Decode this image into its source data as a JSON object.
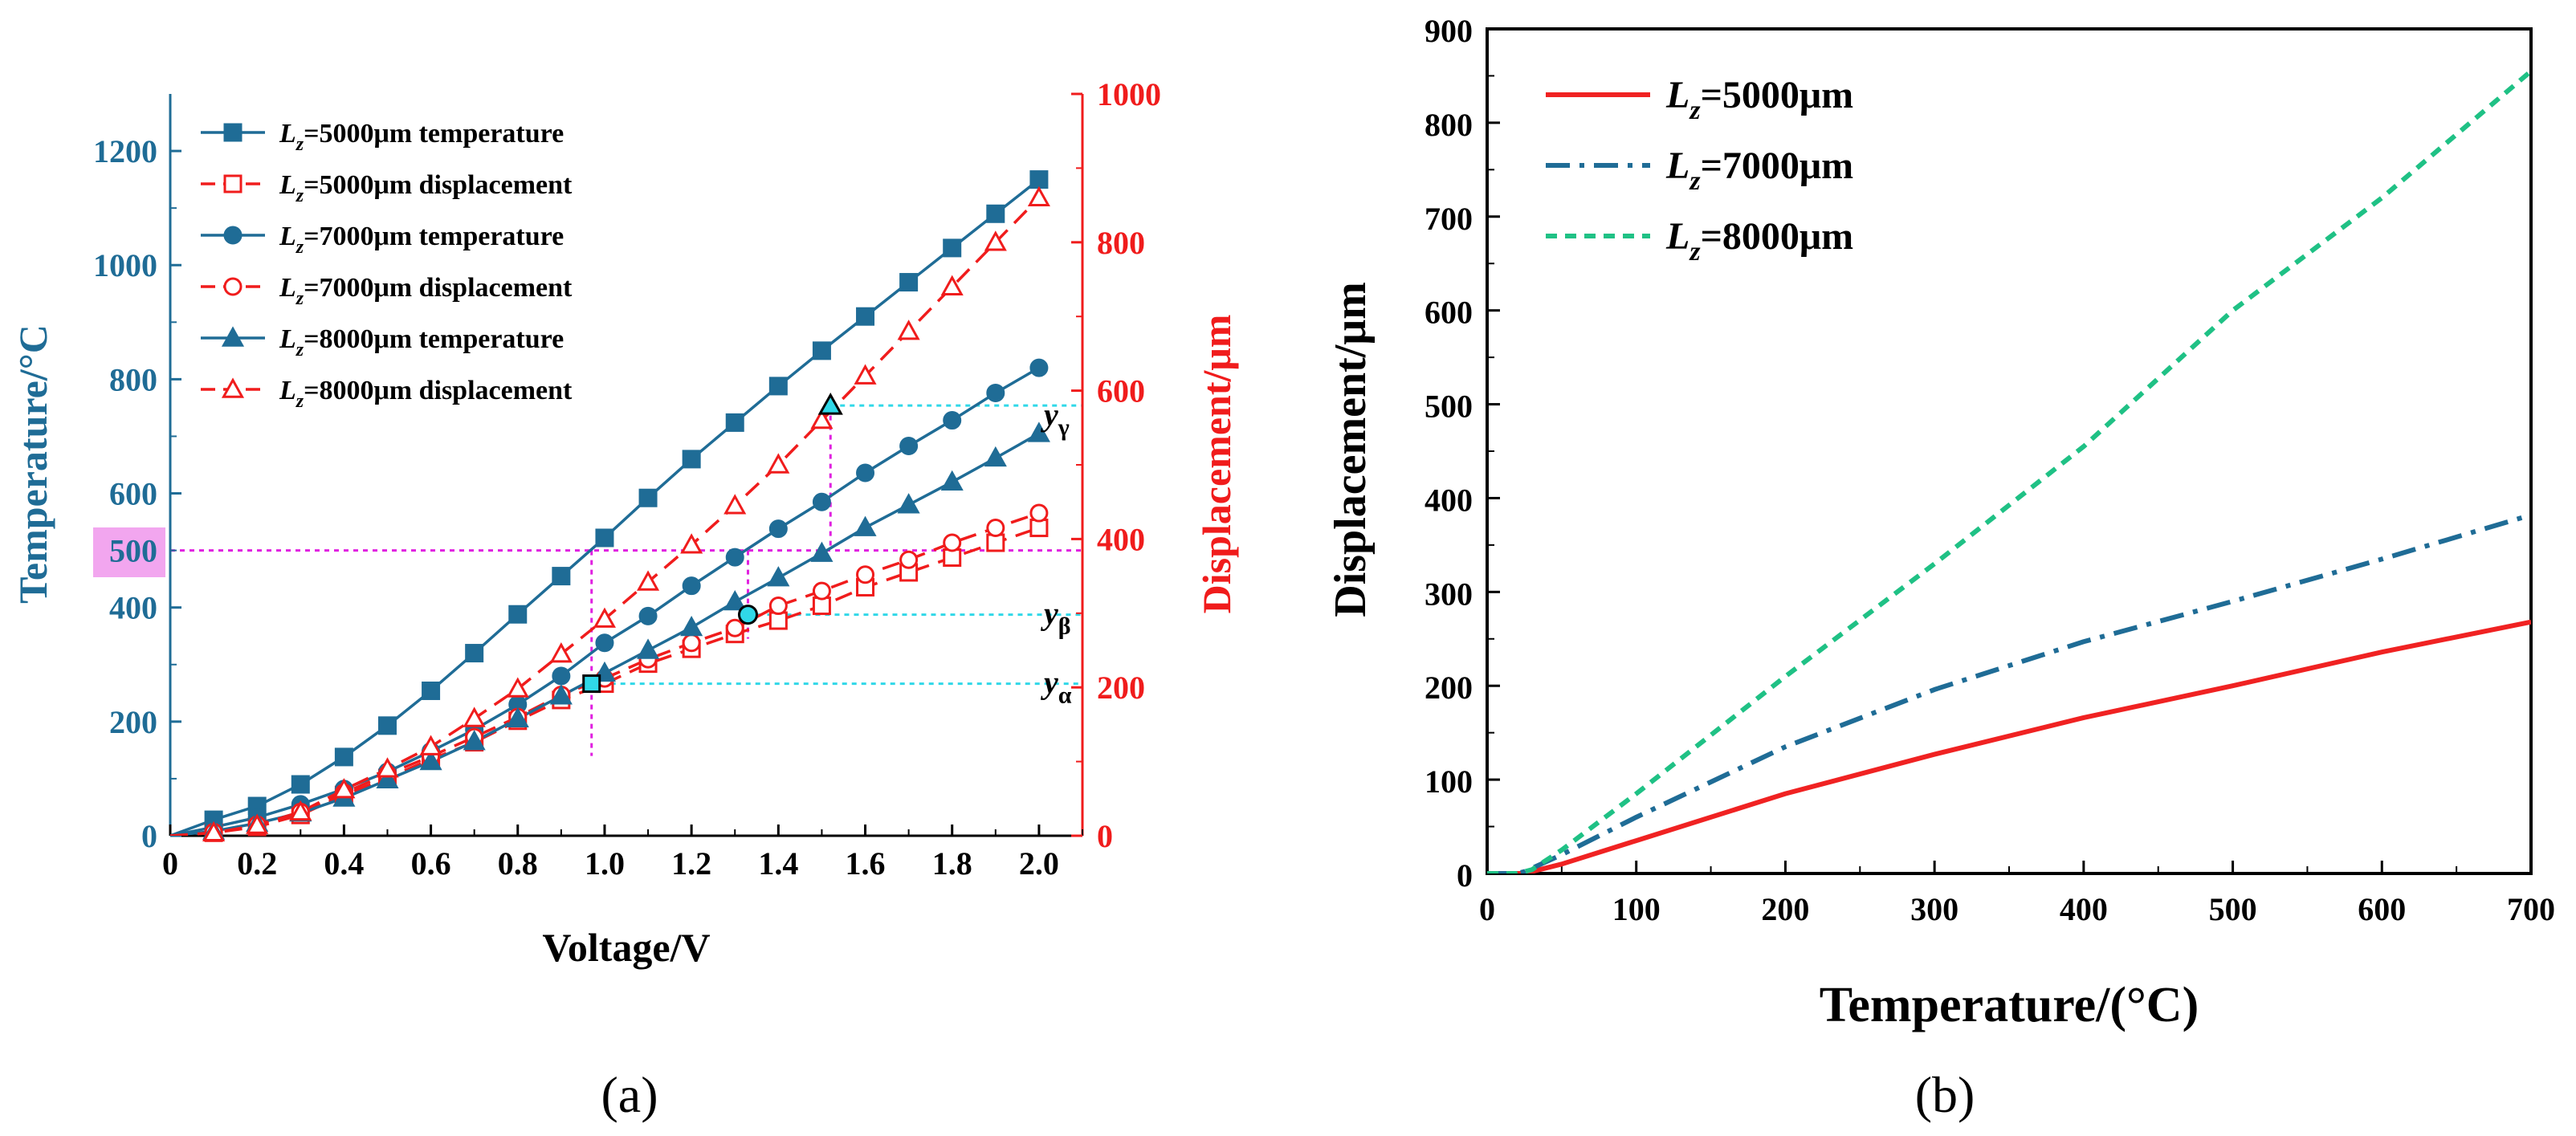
{
  "colors": {
    "left_axis": "#1f6c96",
    "right_axis": "#f01c1c",
    "guide_magenta": "#e020e0",
    "guide_cyan": "#30d8e8",
    "highlight_500": "#f2a6ef",
    "b_5000": "#f02222",
    "b_7000": "#1f6c96",
    "b_8000": "#1fc185"
  },
  "chart_data": [
    {
      "panel": "(a)",
      "type": "line",
      "xlabel": "Voltage/V",
      "ylabel_left": "Temperature/°C",
      "ylabel_right": "Displacement/μm",
      "xlim": [
        0,
        2.1
      ],
      "ylim_left": [
        0,
        1300
      ],
      "ylim_right": [
        0,
        1000
      ],
      "x_ticks": [
        "0",
        "0.2",
        "0.4",
        "0.6",
        "0.8",
        "1.0",
        "1.2",
        "1.4",
        "1.6",
        "1.8",
        "2.0"
      ],
      "y_ticks_left": [
        "0",
        "200",
        "400",
        "600",
        "800",
        "1000",
        "1200"
      ],
      "y_ticks_right": [
        "0",
        "200",
        "400",
        "600",
        "800",
        "1000"
      ],
      "highlight_tick": "500",
      "x": [
        0,
        0.1,
        0.2,
        0.3,
        0.4,
        0.5,
        0.6,
        0.7,
        0.8,
        0.9,
        1.0,
        1.1,
        1.2,
        1.3,
        1.4,
        1.5,
        1.6,
        1.7,
        1.8,
        1.9,
        2.0
      ],
      "series": [
        {
          "name": "=5000μm temperature",
          "lz": "5000",
          "axis": "left",
          "marker": "square",
          "filled": true,
          "dash": false,
          "values": [
            0,
            28,
            52,
            90,
            138,
            193,
            254,
            320,
            388,
            455,
            522,
            592,
            660,
            724,
            788,
            850,
            910,
            970,
            1030,
            1090,
            1150
          ]
        },
        {
          "name": "=5000μm displacement",
          "lz": "5000",
          "axis": "right",
          "marker": "square",
          "filled": false,
          "dash": true,
          "values": [
            0,
            4,
            12,
            28,
            55,
            78,
            103,
            126,
            155,
            183,
            205,
            232,
            252,
            272,
            290,
            310,
            335,
            355,
            375,
            395,
            415
          ]
        },
        {
          "name": "=7000μm temperature",
          "lz": "7000",
          "axis": "left",
          "marker": "circle",
          "filled": true,
          "dash": false,
          "values": [
            0,
            15,
            32,
            55,
            82,
            112,
            148,
            186,
            230,
            280,
            338,
            385,
            438,
            488,
            538,
            585,
            636,
            683,
            728,
            776,
            820
          ]
        },
        {
          "name": "=7000μm displacement",
          "lz": "7000",
          "axis": "right",
          "marker": "circle",
          "filled": false,
          "dash": true,
          "values": [
            0,
            5,
            15,
            32,
            58,
            83,
            107,
            133,
            160,
            190,
            212,
            238,
            260,
            280,
            310,
            330,
            352,
            372,
            395,
            415,
            435
          ]
        },
        {
          "name": "=8000μm temperature",
          "lz": "8000",
          "axis": "left",
          "marker": "triangle",
          "filled": true,
          "dash": false,
          "values": [
            0,
            8,
            22,
            40,
            66,
            98,
            130,
            165,
            205,
            245,
            285,
            325,
            365,
            410,
            452,
            495,
            540,
            580,
            620,
            662,
            705
          ]
        },
        {
          "name": "=8000μm displacement",
          "lz": "8000",
          "axis": "right",
          "marker": "triangle",
          "filled": false,
          "dash": true,
          "values": [
            0,
            4,
            14,
            32,
            62,
            90,
            120,
            158,
            198,
            245,
            292,
            342,
            392,
            445,
            500,
            560,
            620,
            680,
            740,
            800,
            860
          ]
        }
      ],
      "guides": {
        "temperature_500": 500,
        "voltages": [
          0.97,
          1.33,
          1.52
        ],
        "y_alpha": 205,
        "y_beta": 298,
        "y_gamma": 580
      },
      "annotations": [
        {
          "base": "y",
          "sub": "γ"
        },
        {
          "base": "y",
          "sub": "β"
        },
        {
          "base": "y",
          "sub": "α"
        }
      ]
    },
    {
      "panel": "(b)",
      "type": "line",
      "xlabel": "Temperature/(°C)",
      "ylabel": "Displacement/μm",
      "xlim": [
        0,
        700
      ],
      "ylim": [
        0,
        900
      ],
      "x_ticks": [
        "0",
        "100",
        "200",
        "300",
        "400",
        "500",
        "600",
        "700"
      ],
      "y_ticks": [
        "0",
        "100",
        "200",
        "300",
        "400",
        "500",
        "600",
        "700",
        "800",
        "900"
      ],
      "series": [
        {
          "name": "=5000μm",
          "lz": "5000",
          "style": "solid",
          "x": [
            0,
            20,
            25,
            50,
            100,
            200,
            300,
            400,
            500,
            600,
            700
          ],
          "values": [
            0,
            0,
            0,
            10,
            35,
            85,
            127,
            166,
            200,
            236,
            268
          ]
        },
        {
          "name": "=7000μm",
          "lz": "7000",
          "style": "dashdot",
          "x": [
            0,
            20,
            25,
            50,
            100,
            200,
            300,
            400,
            500,
            600,
            700
          ],
          "values": [
            0,
            0,
            2,
            20,
            60,
            135,
            196,
            247,
            290,
            335,
            382
          ]
        },
        {
          "name": "=8000μm",
          "lz": "8000",
          "style": "dash",
          "x": [
            0,
            20,
            30,
            50,
            100,
            200,
            300,
            400,
            500,
            600,
            700
          ],
          "values": [
            0,
            0,
            4,
            25,
            85,
            210,
            330,
            455,
            600,
            720,
            855
          ]
        }
      ]
    }
  ]
}
